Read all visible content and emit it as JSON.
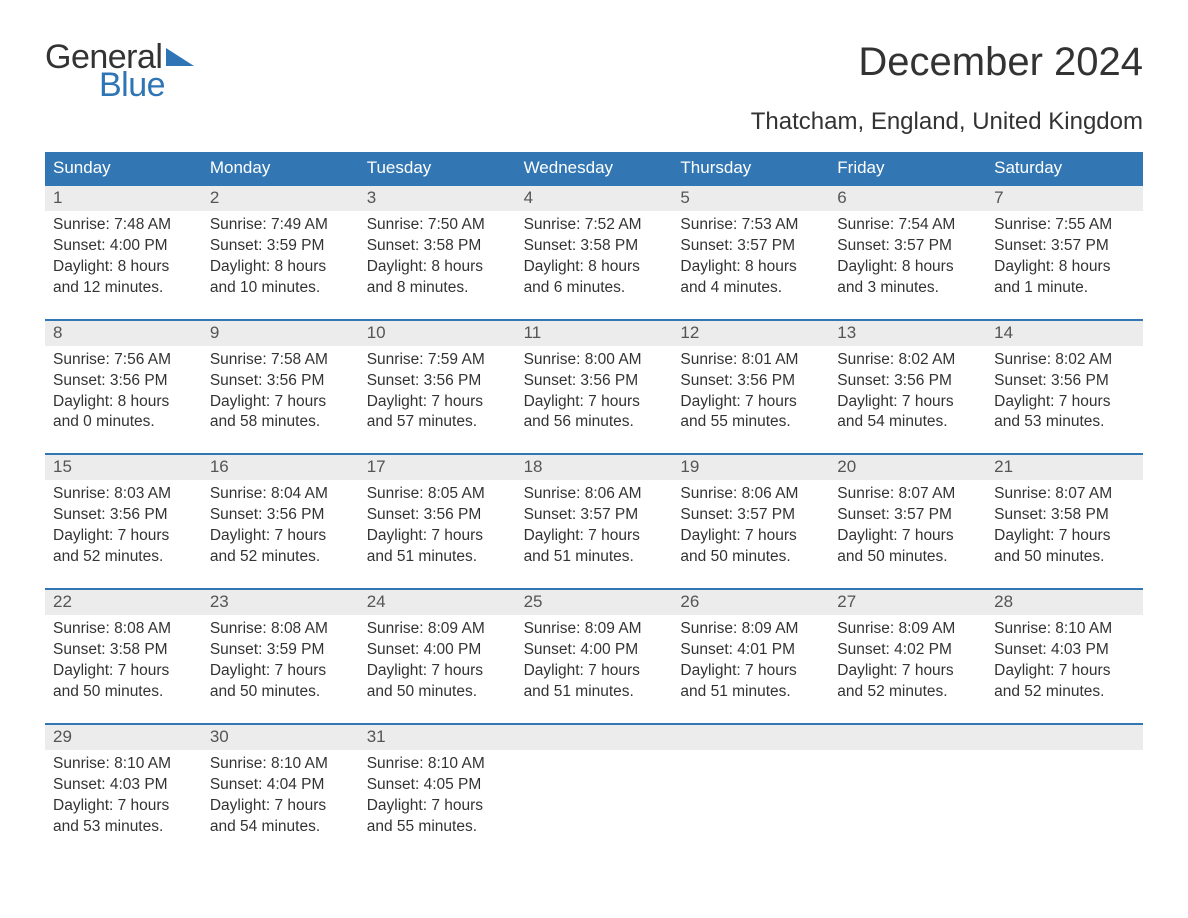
{
  "brand": {
    "word1": "General",
    "word2": "Blue",
    "accent": "#2f75b5"
  },
  "title": "December 2024",
  "location": "Thatcham, England, United Kingdom",
  "colors": {
    "header_bg": "#3277b3",
    "header_text": "#ffffff",
    "daynum_bg": "#ececec",
    "daynum_text": "#555555",
    "body_text": "#333333",
    "rule": "#3277b3",
    "background": "#ffffff"
  },
  "typography": {
    "title_fontsize": 40,
    "location_fontsize": 24,
    "header_fontsize": 17,
    "daynum_fontsize": 17,
    "cell_fontsize": 15.5
  },
  "day_headers": [
    "Sunday",
    "Monday",
    "Tuesday",
    "Wednesday",
    "Thursday",
    "Friday",
    "Saturday"
  ],
  "weeks": [
    [
      {
        "n": "1",
        "sunrise": "7:48 AM",
        "sunset": "4:00 PM",
        "day1": "Daylight: 8 hours",
        "day2": "and 12 minutes."
      },
      {
        "n": "2",
        "sunrise": "7:49 AM",
        "sunset": "3:59 PM",
        "day1": "Daylight: 8 hours",
        "day2": "and 10 minutes."
      },
      {
        "n": "3",
        "sunrise": "7:50 AM",
        "sunset": "3:58 PM",
        "day1": "Daylight: 8 hours",
        "day2": "and 8 minutes."
      },
      {
        "n": "4",
        "sunrise": "7:52 AM",
        "sunset": "3:58 PM",
        "day1": "Daylight: 8 hours",
        "day2": "and 6 minutes."
      },
      {
        "n": "5",
        "sunrise": "7:53 AM",
        "sunset": "3:57 PM",
        "day1": "Daylight: 8 hours",
        "day2": "and 4 minutes."
      },
      {
        "n": "6",
        "sunrise": "7:54 AM",
        "sunset": "3:57 PM",
        "day1": "Daylight: 8 hours",
        "day2": "and 3 minutes."
      },
      {
        "n": "7",
        "sunrise": "7:55 AM",
        "sunset": "3:57 PM",
        "day1": "Daylight: 8 hours",
        "day2": "and 1 minute."
      }
    ],
    [
      {
        "n": "8",
        "sunrise": "7:56 AM",
        "sunset": "3:56 PM",
        "day1": "Daylight: 8 hours",
        "day2": "and 0 minutes."
      },
      {
        "n": "9",
        "sunrise": "7:58 AM",
        "sunset": "3:56 PM",
        "day1": "Daylight: 7 hours",
        "day2": "and 58 minutes."
      },
      {
        "n": "10",
        "sunrise": "7:59 AM",
        "sunset": "3:56 PM",
        "day1": "Daylight: 7 hours",
        "day2": "and 57 minutes."
      },
      {
        "n": "11",
        "sunrise": "8:00 AM",
        "sunset": "3:56 PM",
        "day1": "Daylight: 7 hours",
        "day2": "and 56 minutes."
      },
      {
        "n": "12",
        "sunrise": "8:01 AM",
        "sunset": "3:56 PM",
        "day1": "Daylight: 7 hours",
        "day2": "and 55 minutes."
      },
      {
        "n": "13",
        "sunrise": "8:02 AM",
        "sunset": "3:56 PM",
        "day1": "Daylight: 7 hours",
        "day2": "and 54 minutes."
      },
      {
        "n": "14",
        "sunrise": "8:02 AM",
        "sunset": "3:56 PM",
        "day1": "Daylight: 7 hours",
        "day2": "and 53 minutes."
      }
    ],
    [
      {
        "n": "15",
        "sunrise": "8:03 AM",
        "sunset": "3:56 PM",
        "day1": "Daylight: 7 hours",
        "day2": "and 52 minutes."
      },
      {
        "n": "16",
        "sunrise": "8:04 AM",
        "sunset": "3:56 PM",
        "day1": "Daylight: 7 hours",
        "day2": "and 52 minutes."
      },
      {
        "n": "17",
        "sunrise": "8:05 AM",
        "sunset": "3:56 PM",
        "day1": "Daylight: 7 hours",
        "day2": "and 51 minutes."
      },
      {
        "n": "18",
        "sunrise": "8:06 AM",
        "sunset": "3:57 PM",
        "day1": "Daylight: 7 hours",
        "day2": "and 51 minutes."
      },
      {
        "n": "19",
        "sunrise": "8:06 AM",
        "sunset": "3:57 PM",
        "day1": "Daylight: 7 hours",
        "day2": "and 50 minutes."
      },
      {
        "n": "20",
        "sunrise": "8:07 AM",
        "sunset": "3:57 PM",
        "day1": "Daylight: 7 hours",
        "day2": "and 50 minutes."
      },
      {
        "n": "21",
        "sunrise": "8:07 AM",
        "sunset": "3:58 PM",
        "day1": "Daylight: 7 hours",
        "day2": "and 50 minutes."
      }
    ],
    [
      {
        "n": "22",
        "sunrise": "8:08 AM",
        "sunset": "3:58 PM",
        "day1": "Daylight: 7 hours",
        "day2": "and 50 minutes."
      },
      {
        "n": "23",
        "sunrise": "8:08 AM",
        "sunset": "3:59 PM",
        "day1": "Daylight: 7 hours",
        "day2": "and 50 minutes."
      },
      {
        "n": "24",
        "sunrise": "8:09 AM",
        "sunset": "4:00 PM",
        "day1": "Daylight: 7 hours",
        "day2": "and 50 minutes."
      },
      {
        "n": "25",
        "sunrise": "8:09 AM",
        "sunset": "4:00 PM",
        "day1": "Daylight: 7 hours",
        "day2": "and 51 minutes."
      },
      {
        "n": "26",
        "sunrise": "8:09 AM",
        "sunset": "4:01 PM",
        "day1": "Daylight: 7 hours",
        "day2": "and 51 minutes."
      },
      {
        "n": "27",
        "sunrise": "8:09 AM",
        "sunset": "4:02 PM",
        "day1": "Daylight: 7 hours",
        "day2": "and 52 minutes."
      },
      {
        "n": "28",
        "sunrise": "8:10 AM",
        "sunset": "4:03 PM",
        "day1": "Daylight: 7 hours",
        "day2": "and 52 minutes."
      }
    ],
    [
      {
        "n": "29",
        "sunrise": "8:10 AM",
        "sunset": "4:03 PM",
        "day1": "Daylight: 7 hours",
        "day2": "and 53 minutes."
      },
      {
        "n": "30",
        "sunrise": "8:10 AM",
        "sunset": "4:04 PM",
        "day1": "Daylight: 7 hours",
        "day2": "and 54 minutes."
      },
      {
        "n": "31",
        "sunrise": "8:10 AM",
        "sunset": "4:05 PM",
        "day1": "Daylight: 7 hours",
        "day2": "and 55 minutes."
      },
      null,
      null,
      null,
      null
    ]
  ],
  "labels": {
    "sunrise_prefix": "Sunrise: ",
    "sunset_prefix": "Sunset: "
  }
}
